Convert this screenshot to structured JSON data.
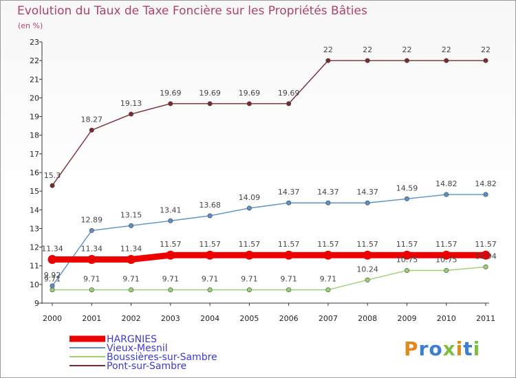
{
  "title": "Evolution du Taux de Taxe Foncière sur les Propriétés Bâties",
  "subtitle": "(en %)",
  "logo": {
    "text": "Proxiti",
    "colors": [
      "#e08a1e",
      "#3a7fd0",
      "#3a7fd0",
      "#7cc040",
      "#e08a1e",
      "#3a7fd0",
      "#7cc040"
    ]
  },
  "chart_data": {
    "type": "line",
    "x": [
      "2000",
      "2001",
      "2002",
      "2003",
      "2004",
      "2005",
      "2006",
      "2007",
      "2008",
      "2009",
      "2010",
      "2011"
    ],
    "ylim": [
      9,
      23
    ],
    "yticks": [
      "9",
      "10",
      "11",
      "12",
      "13",
      "14",
      "15",
      "16",
      "17",
      "18",
      "19",
      "20",
      "21",
      "22",
      "23"
    ],
    "grid": "none",
    "legend_position": "bottom-left",
    "series": [
      {
        "name": "HARGNIES",
        "color": "#ee0000",
        "values": [
          11.34,
          11.34,
          11.34,
          11.57,
          11.57,
          11.57,
          11.57,
          11.57,
          11.57,
          11.57,
          11.57,
          11.57
        ],
        "labels": [
          "11.34",
          "11.34",
          "11.34",
          "11.57",
          "11.57",
          "11.57",
          "11.57",
          "11.57",
          "11.57",
          "11.57",
          "11.57",
          "11.57"
        ]
      },
      {
        "name": "Vieux-Mesnil",
        "color": "#5a8fc8",
        "values": [
          9.92,
          12.89,
          13.15,
          13.41,
          13.68,
          14.09,
          14.37,
          14.37,
          14.37,
          14.59,
          14.82,
          14.82
        ],
        "labels": [
          "9.92",
          "12.89",
          "13.15",
          "13.41",
          "13.68",
          "14.09",
          "14.37",
          "14.37",
          "14.37",
          "14.59",
          "14.82",
          "14.82"
        ]
      },
      {
        "name": "Boussières-sur-Sambre",
        "color": "#99d070",
        "values": [
          9.71,
          9.71,
          9.71,
          9.71,
          9.71,
          9.71,
          9.71,
          9.71,
          10.24,
          10.75,
          10.75,
          10.94
        ],
        "labels": [
          "9.71",
          "9.71",
          "9.71",
          "9.71",
          "9.71",
          "9.71",
          "9.71",
          "9.71",
          "10.24",
          "10.75",
          "10.75",
          "10.94"
        ]
      },
      {
        "name": "Pont-sur-Sambre",
        "color": "#7a2a30",
        "values": [
          15.3,
          18.27,
          19.13,
          19.69,
          19.69,
          19.69,
          19.69,
          22,
          22,
          22,
          22,
          22
        ],
        "labels": [
          "15.3",
          "18.27",
          "19.13",
          "19.69",
          "19.69",
          "19.69",
          "19.69",
          "22",
          "22",
          "22",
          "22",
          "22"
        ]
      }
    ]
  }
}
